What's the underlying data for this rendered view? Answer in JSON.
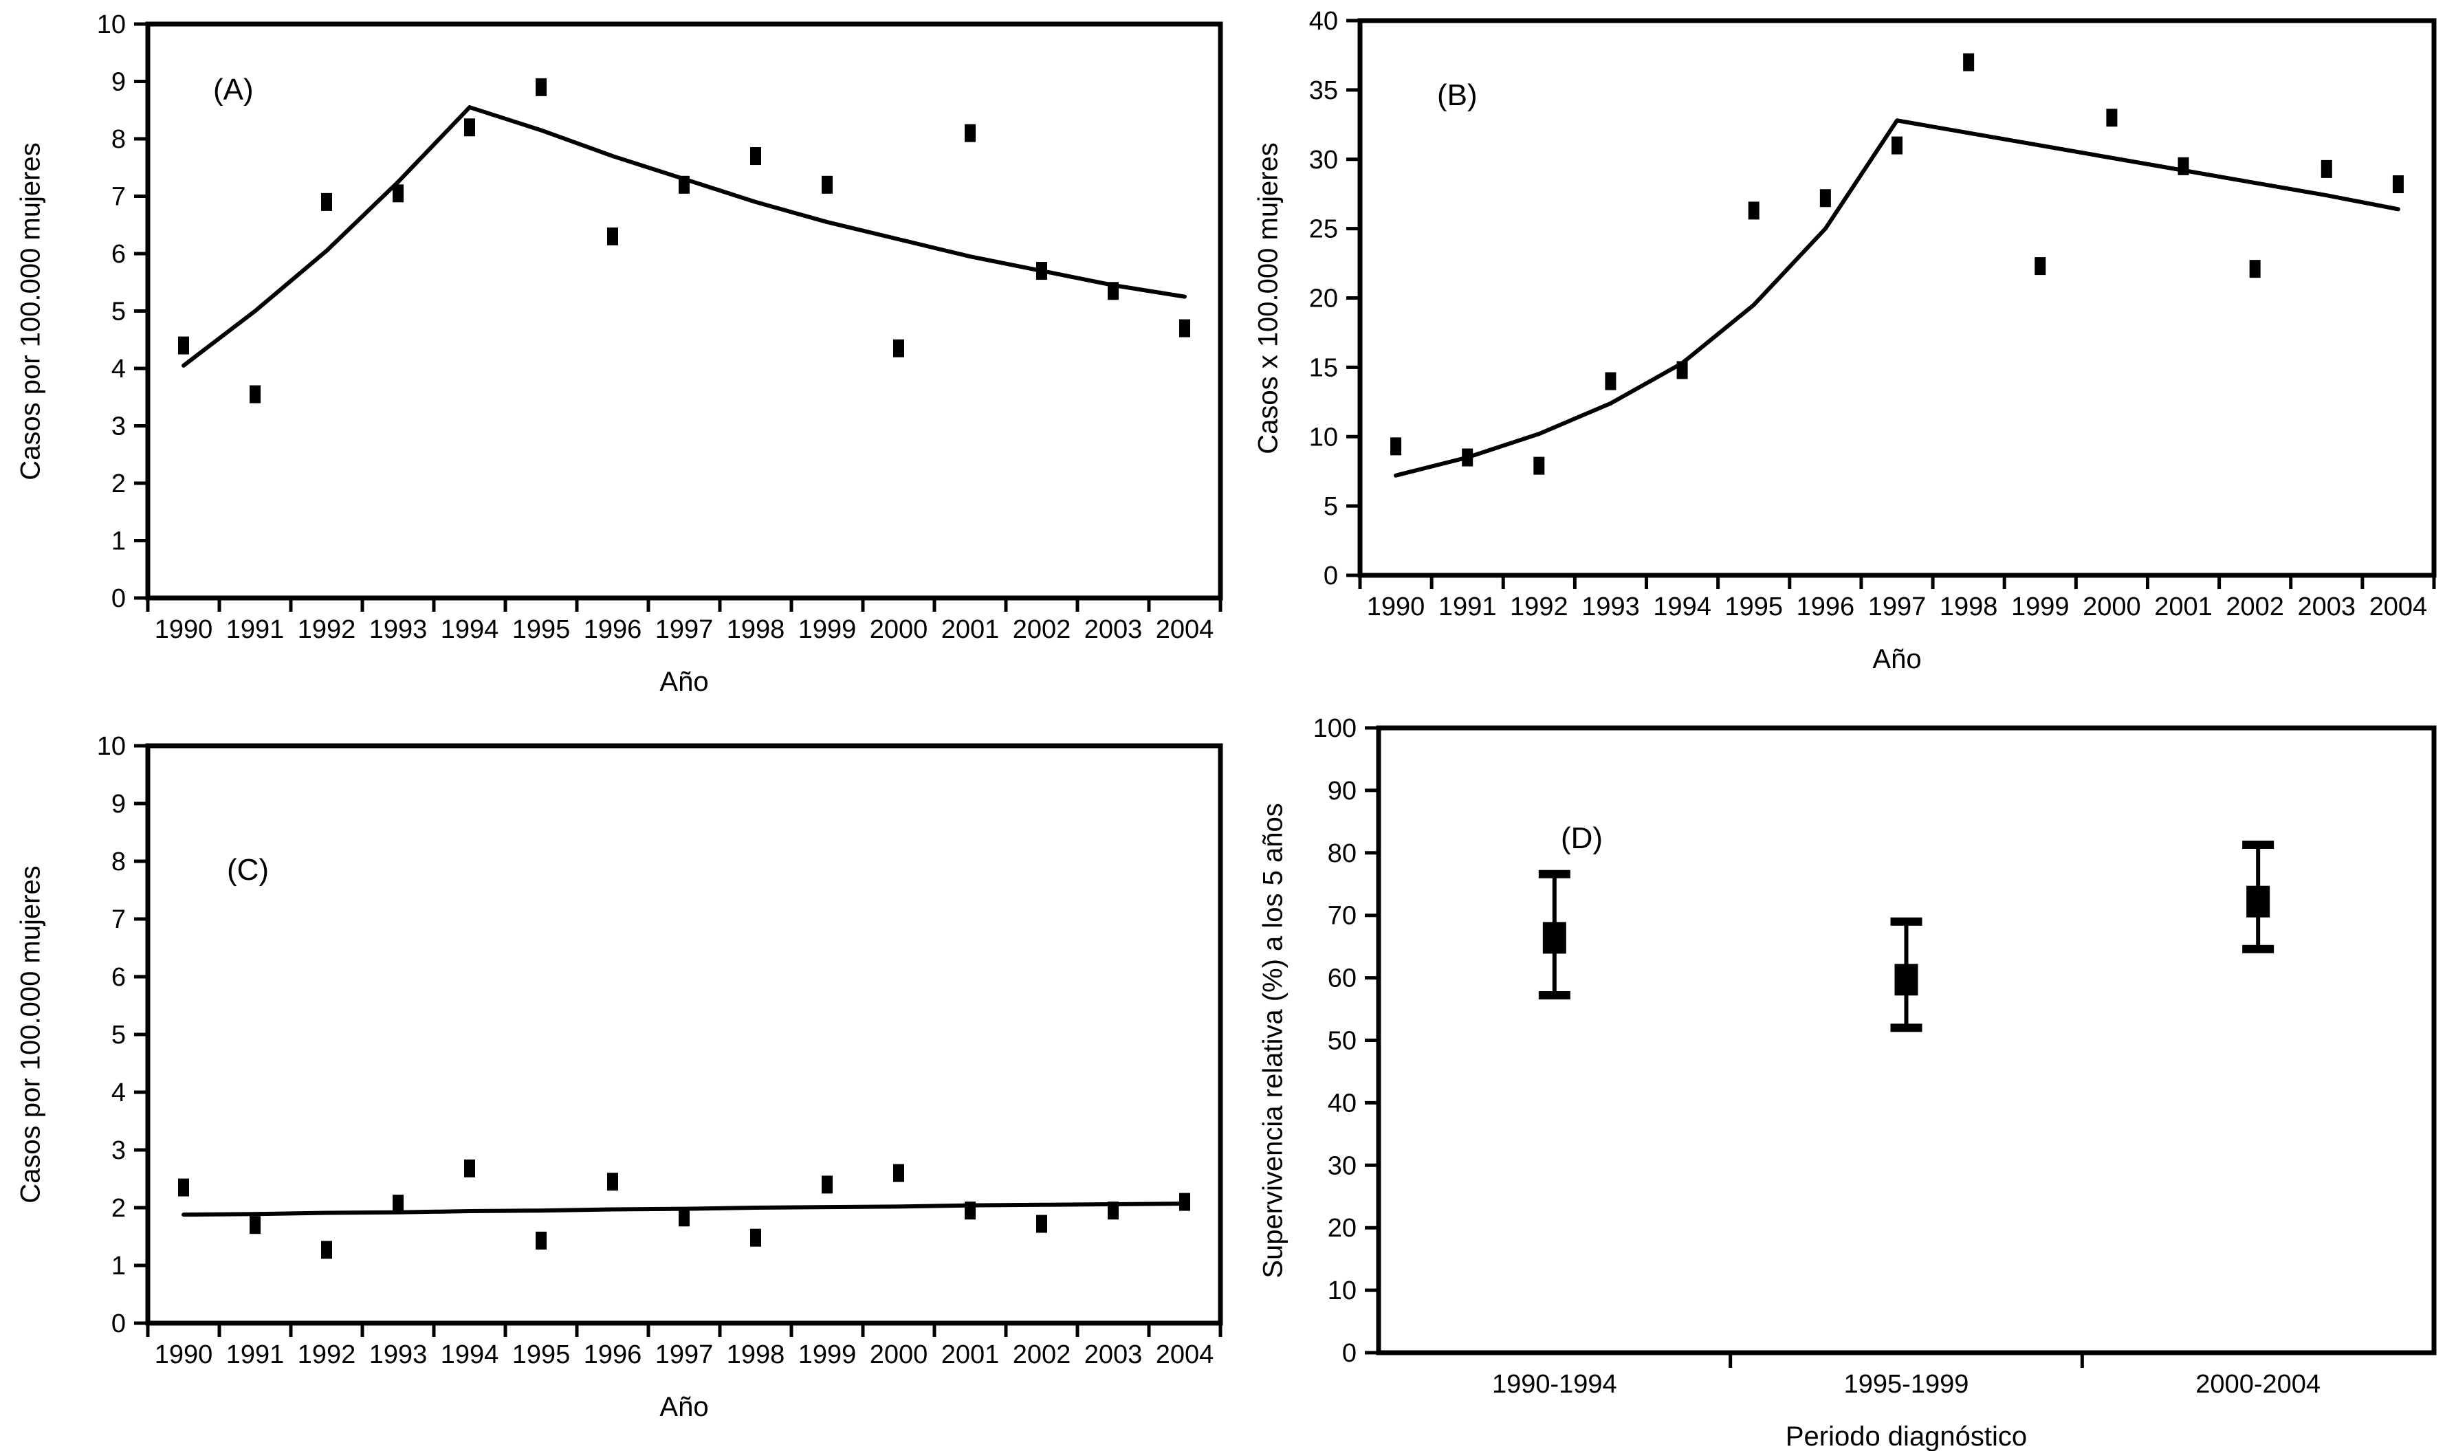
{
  "figure": {
    "background": "#ffffff",
    "ink_color": "#000000",
    "panel_labels": [
      "(A)",
      "(B)",
      "(C)",
      "(D)"
    ]
  },
  "chart_data": [
    {
      "type": "scatter",
      "panel_label": "(A)",
      "ylabel": "Casos por 100.000 mujeres",
      "xlabel": "Año",
      "categories": [
        "1990",
        "1991",
        "1992",
        "1993",
        "1994",
        "1995",
        "1996",
        "1997",
        "1998",
        "1999",
        "2000",
        "2001",
        "2002",
        "2003",
        "2004"
      ],
      "values": [
        4.4,
        3.55,
        6.9,
        7.05,
        8.2,
        8.9,
        6.3,
        7.2,
        7.7,
        7.2,
        4.35,
        8.1,
        5.7,
        5.35,
        4.7
      ],
      "trend": [
        4.05,
        5.0,
        6.05,
        7.25,
        8.55,
        8.15,
        7.7,
        7.3,
        6.9,
        6.55,
        6.25,
        5.95,
        5.7,
        5.45,
        5.25
      ],
      "ylim": [
        0,
        10
      ],
      "ystep": 1,
      "grid": false,
      "legend": "none"
    },
    {
      "type": "scatter",
      "panel_label": "(B)",
      "ylabel": "Casos x 100.000 mujeres",
      "xlabel": "Año",
      "categories": [
        "1990",
        "1991",
        "1992",
        "1993",
        "1994",
        "1995",
        "1996",
        "1997",
        "1998",
        "1999",
        "2000",
        "2001",
        "2002",
        "2003",
        "2004"
      ],
      "values": [
        9.3,
        8.5,
        7.9,
        14.0,
        14.8,
        26.3,
        27.2,
        31.0,
        37.0,
        22.3,
        33.0,
        29.5,
        22.1,
        29.3,
        28.2
      ],
      "trend": [
        7.2,
        8.5,
        10.2,
        12.4,
        15.3,
        19.5,
        25.0,
        32.8,
        31.9,
        31.0,
        30.1,
        29.2,
        28.3,
        27.4,
        26.4
      ],
      "ylim": [
        0,
        40
      ],
      "ystep": 5,
      "grid": false,
      "legend": "none"
    },
    {
      "type": "scatter",
      "panel_label": "(C)",
      "ylabel": "Casos por 100.000 mujeres",
      "xlabel": "Año",
      "categories": [
        "1990",
        "1991",
        "1992",
        "1993",
        "1994",
        "1995",
        "1996",
        "1997",
        "1998",
        "1999",
        "2000",
        "2001",
        "2002",
        "2003",
        "2004"
      ],
      "values": [
        2.35,
        1.7,
        1.27,
        2.07,
        2.68,
        1.43,
        2.45,
        1.83,
        1.48,
        2.4,
        2.6,
        1.95,
        1.72,
        1.95,
        2.1
      ],
      "trend": [
        1.88,
        1.89,
        1.91,
        1.92,
        1.94,
        1.95,
        1.97,
        1.98,
        2.0,
        2.01,
        2.02,
        2.04,
        2.05,
        2.06,
        2.07
      ],
      "ylim": [
        0,
        10
      ],
      "ystep": 1,
      "grid": false,
      "legend": "none"
    },
    {
      "type": "errorbar",
      "panel_label": "(D)",
      "ylabel": "Supervivencia relativa (%) a los 5 años",
      "xlabel": "Periodo diagnóstico",
      "categories": [
        "1990-1994",
        "1995-1999",
        "2000-2004"
      ],
      "points": [
        {
          "value": 66.4,
          "lo": 57.2,
          "hi": 76.6
        },
        {
          "value": 59.7,
          "lo": 52.0,
          "hi": 69.0
        },
        {
          "value": 72.2,
          "lo": 64.6,
          "hi": 81.3
        }
      ],
      "ylim": [
        0,
        100
      ],
      "ystep": 10,
      "grid": false,
      "legend": "none"
    }
  ]
}
